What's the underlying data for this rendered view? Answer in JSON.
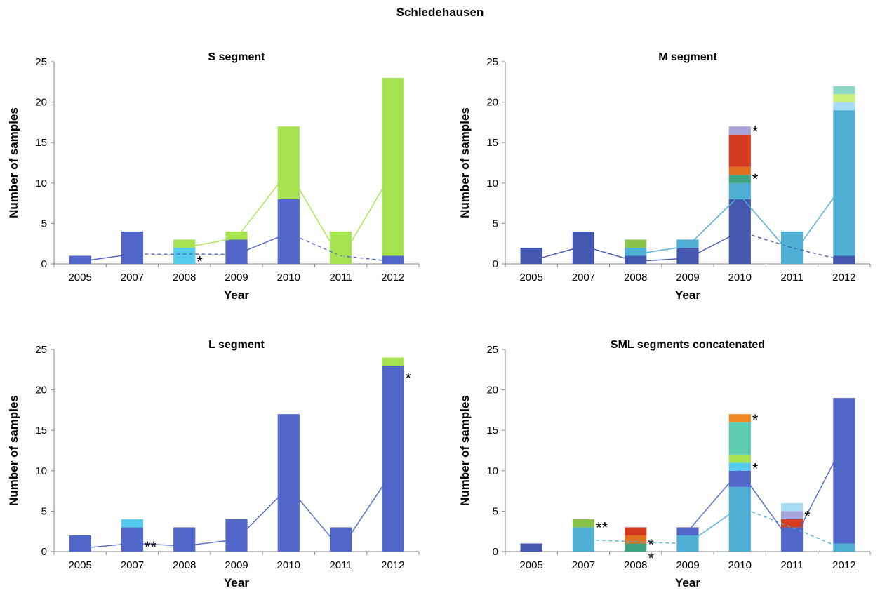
{
  "figure_title": "Schledehausen",
  "colors": {
    "blue": "#5166c9",
    "darkblue": "#4458b0",
    "cyan": "#55ccee",
    "steelcyan": "#4eaed4",
    "lightgreen": "#a6e350",
    "olivegreen": "#8bc34a",
    "teal": "#3ea37e",
    "orange": "#f08a20",
    "darkorange": "#e07020",
    "red": "#d63a1e",
    "lavender": "#a8a4dc",
    "paleblue": "#a7dcf4",
    "palegreen": "#c8f07a",
    "mint": "#8ed8c8",
    "seafoam": "#5ccdb0"
  },
  "chart_data": [
    {
      "type": "bar",
      "stacked": true,
      "title": "S segment",
      "xlabel": "Year",
      "ylabel": "Number of samples",
      "ylim": [
        0,
        25
      ],
      "yticks": [
        0,
        5,
        10,
        15,
        20,
        25
      ],
      "categories": [
        "2005",
        "2007",
        "2008",
        "2009",
        "2010",
        "2011",
        "2012"
      ],
      "stacks": [
        [
          {
            "value": 1,
            "color": "blue"
          }
        ],
        [
          {
            "value": 4,
            "color": "blue"
          }
        ],
        [
          {
            "value": 2,
            "color": "cyan"
          },
          {
            "value": 1,
            "color": "lightgreen"
          }
        ],
        [
          {
            "value": 3,
            "color": "blue"
          },
          {
            "value": 1,
            "color": "lightgreen"
          }
        ],
        [
          {
            "value": 8,
            "color": "blue"
          },
          {
            "value": 9,
            "color": "lightgreen"
          }
        ],
        [
          {
            "value": 4,
            "color": "lightgreen"
          }
        ],
        [
          {
            "value": 1,
            "color": "blue"
          },
          {
            "value": 22,
            "color": "lightgreen"
          }
        ]
      ],
      "lines": [
        {
          "color": "blue",
          "dashed": false,
          "points": [
            [
              0,
              0.3
            ],
            [
              1,
              1.2
            ]
          ]
        },
        {
          "color": "blue",
          "dashed": true,
          "points": [
            [
              1,
              1.2
            ],
            [
              2,
              1.2
            ],
            [
              3,
              1.2
            ]
          ]
        },
        {
          "color": "blue",
          "dashed": false,
          "points": [
            [
              3,
              1.2
            ],
            [
              4,
              3.8
            ]
          ]
        },
        {
          "color": "blue",
          "dashed": true,
          "points": [
            [
              4,
              3.8
            ],
            [
              5,
              1.0
            ],
            [
              6,
              0.3
            ]
          ]
        },
        {
          "color": "lightgreen",
          "dashed": false,
          "points": [
            [
              2,
              2.0
            ],
            [
              3,
              3.2
            ],
            [
              4,
              11.5
            ],
            [
              5,
              0.5
            ],
            [
              6,
              11.5
            ]
          ]
        }
      ],
      "asterisks": [
        {
          "category": 2,
          "y": 0.3,
          "text": "*"
        }
      ]
    },
    {
      "type": "bar",
      "stacked": true,
      "title": "M segment",
      "xlabel": "Year",
      "ylabel": "Number of samples",
      "ylim": [
        0,
        25
      ],
      "yticks": [
        0,
        5,
        10,
        15,
        20,
        25
      ],
      "categories": [
        "2005",
        "2007",
        "2008",
        "2009",
        "2010",
        "2011",
        "2012"
      ],
      "stacks": [
        [
          {
            "value": 2,
            "color": "darkblue"
          }
        ],
        [
          {
            "value": 4,
            "color": "darkblue"
          }
        ],
        [
          {
            "value": 1,
            "color": "darkblue"
          },
          {
            "value": 1,
            "color": "steelcyan"
          },
          {
            "value": 1,
            "color": "olivegreen"
          }
        ],
        [
          {
            "value": 2,
            "color": "darkblue"
          },
          {
            "value": 1,
            "color": "steelcyan"
          }
        ],
        [
          {
            "value": 8,
            "color": "darkblue"
          },
          {
            "value": 2,
            "color": "steelcyan"
          },
          {
            "value": 1,
            "color": "teal"
          },
          {
            "value": 1,
            "color": "darkorange"
          },
          {
            "value": 4,
            "color": "red"
          },
          {
            "value": 1,
            "color": "lavender"
          }
        ],
        [
          {
            "value": 4,
            "color": "steelcyan"
          }
        ],
        [
          {
            "value": 1,
            "color": "darkblue"
          },
          {
            "value": 18,
            "color": "steelcyan"
          },
          {
            "value": 1,
            "color": "paleblue"
          },
          {
            "value": 1,
            "color": "palegreen"
          },
          {
            "value": 1,
            "color": "mint"
          }
        ]
      ],
      "lines": [
        {
          "color": "darkblue",
          "dashed": false,
          "points": [
            [
              0,
              0.4
            ],
            [
              1,
              2.2
            ],
            [
              2,
              0.3
            ],
            [
              3,
              0.7
            ],
            [
              4,
              4.0
            ]
          ]
        },
        {
          "color": "darkblue",
          "dashed": true,
          "points": [
            [
              4,
              4.0
            ],
            [
              5,
              2.0
            ],
            [
              6,
              0.4
            ]
          ]
        },
        {
          "color": "steelcyan",
          "dashed": false,
          "points": [
            [
              2,
              1.2
            ],
            [
              3,
              2.2
            ],
            [
              4,
              8.5
            ],
            [
              5,
              1.0
            ],
            [
              6,
              10.0
            ]
          ]
        }
      ],
      "asterisks": [
        {
          "category": 4,
          "y": 16.4,
          "text": "*"
        },
        {
          "category": 4,
          "y": 10.5,
          "text": "*"
        }
      ]
    },
    {
      "type": "bar",
      "stacked": true,
      "title": "L segment",
      "xlabel": "Year",
      "ylabel": "Number of samples",
      "ylim": [
        0,
        25
      ],
      "yticks": [
        0,
        5,
        10,
        15,
        20,
        25
      ],
      "categories": [
        "2005",
        "2007",
        "2008",
        "2009",
        "2010",
        "2011",
        "2012"
      ],
      "stacks": [
        [
          {
            "value": 2,
            "color": "blue"
          }
        ],
        [
          {
            "value": 3,
            "color": "blue"
          },
          {
            "value": 1,
            "color": "cyan"
          }
        ],
        [
          {
            "value": 3,
            "color": "blue"
          }
        ],
        [
          {
            "value": 4,
            "color": "blue"
          }
        ],
        [
          {
            "value": 17,
            "color": "blue"
          }
        ],
        [
          {
            "value": 3,
            "color": "blue"
          }
        ],
        [
          {
            "value": 23,
            "color": "blue"
          },
          {
            "value": 1,
            "color": "lightgreen"
          }
        ]
      ],
      "lines": [
        {
          "color": "blue",
          "dashed": false,
          "points": [
            [
              0,
              0.4
            ],
            [
              1,
              1.0
            ],
            [
              2,
              0.7
            ],
            [
              3,
              1.5
            ],
            [
              4,
              8.0
            ],
            [
              5,
              0.3
            ],
            [
              6,
              10.0
            ]
          ]
        }
      ],
      "asterisks": [
        {
          "category": 1,
          "y": 0.6,
          "text": "**"
        },
        {
          "category": 6,
          "y": 21.5,
          "text": "*"
        }
      ]
    },
    {
      "type": "bar",
      "stacked": true,
      "title": "SML segments concatenated",
      "xlabel": "Year",
      "ylabel": "Number of samples",
      "ylim": [
        0,
        25
      ],
      "yticks": [
        0,
        5,
        10,
        15,
        20,
        25
      ],
      "categories": [
        "2005",
        "2007",
        "2008",
        "2009",
        "2010",
        "2011",
        "2012"
      ],
      "stacks": [
        [
          {
            "value": 1,
            "color": "darkblue"
          }
        ],
        [
          {
            "value": 3,
            "color": "steelcyan"
          },
          {
            "value": 1,
            "color": "olivegreen"
          }
        ],
        [
          {
            "value": 1,
            "color": "teal"
          },
          {
            "value": 1,
            "color": "darkorange"
          },
          {
            "value": 1,
            "color": "red"
          }
        ],
        [
          {
            "value": 2,
            "color": "steelcyan"
          },
          {
            "value": 1,
            "color": "blue"
          }
        ],
        [
          {
            "value": 8,
            "color": "steelcyan"
          },
          {
            "value": 2,
            "color": "blue"
          },
          {
            "value": 1,
            "color": "cyan"
          },
          {
            "value": 1,
            "color": "lightgreen"
          },
          {
            "value": 4,
            "color": "seafoam"
          },
          {
            "value": 1,
            "color": "orange"
          }
        ],
        [
          {
            "value": 3,
            "color": "blue"
          },
          {
            "value": 1,
            "color": "red"
          },
          {
            "value": 1,
            "color": "lavender"
          },
          {
            "value": 1,
            "color": "paleblue"
          }
        ],
        [
          {
            "value": 1,
            "color": "steelcyan"
          },
          {
            "value": 18,
            "color": "blue"
          }
        ]
      ],
      "lines": [
        {
          "color": "steelcyan",
          "dashed": true,
          "points": [
            [
              1,
              1.5
            ],
            [
              2,
              1.2
            ],
            [
              3,
              1.0
            ]
          ]
        },
        {
          "color": "steelcyan",
          "dashed": false,
          "points": [
            [
              3,
              1.0
            ],
            [
              4,
              5.5
            ]
          ]
        },
        {
          "color": "steelcyan",
          "dashed": true,
          "points": [
            [
              4,
              5.5
            ],
            [
              5,
              3.0
            ],
            [
              6,
              0.3
            ]
          ]
        },
        {
          "color": "blue",
          "dashed": false,
          "points": [
            [
              3,
              2.5
            ],
            [
              4,
              10.0
            ],
            [
              5,
              1.0
            ],
            [
              6,
              13.5
            ]
          ]
        }
      ],
      "asterisks": [
        {
          "category": 1,
          "y": 3.0,
          "text": "**"
        },
        {
          "category": 2,
          "y": 0.9,
          "text": "*"
        },
        {
          "category": 2,
          "y": -0.8,
          "text": "*"
        },
        {
          "category": 4,
          "y": 16.3,
          "text": "*"
        },
        {
          "category": 4,
          "y": 10.3,
          "text": "*"
        },
        {
          "category": 5,
          "y": 4.4,
          "text": "*"
        }
      ]
    }
  ]
}
